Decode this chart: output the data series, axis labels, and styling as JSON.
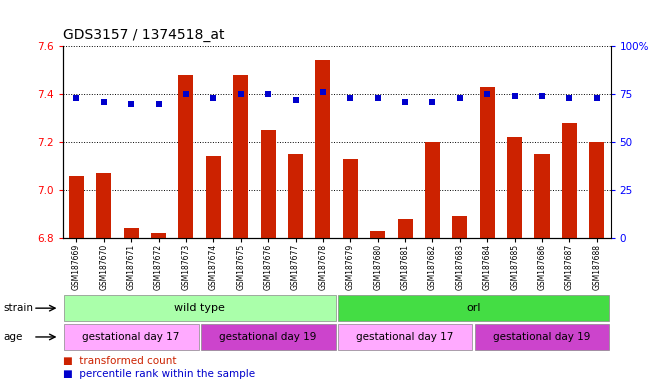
{
  "title": "GDS3157 / 1374518_at",
  "samples": [
    "GSM187669",
    "GSM187670",
    "GSM187671",
    "GSM187672",
    "GSM187673",
    "GSM187674",
    "GSM187675",
    "GSM187676",
    "GSM187677",
    "GSM187678",
    "GSM187679",
    "GSM187680",
    "GSM187681",
    "GSM187682",
    "GSM187683",
    "GSM187684",
    "GSM187685",
    "GSM187686",
    "GSM187687",
    "GSM187688"
  ],
  "bar_values": [
    7.06,
    7.07,
    6.84,
    6.82,
    7.48,
    7.14,
    7.48,
    7.25,
    7.15,
    7.54,
    7.13,
    6.83,
    6.88,
    7.2,
    6.89,
    7.43,
    7.22,
    7.15,
    7.28,
    7.2
  ],
  "percentile_values": [
    73,
    71,
    70,
    70,
    75,
    73,
    75,
    75,
    72,
    76,
    73,
    73,
    71,
    71,
    73,
    75,
    74,
    74,
    73,
    73
  ],
  "bar_color": "#cc2200",
  "percentile_color": "#0000cc",
  "ylim_left": [
    6.8,
    7.6
  ],
  "ylim_right": [
    0,
    100
  ],
  "yticks_left": [
    6.8,
    7.0,
    7.2,
    7.4,
    7.6
  ],
  "yticks_right": [
    0,
    25,
    50,
    75,
    100
  ],
  "groups_strain": [
    {
      "label": "wild type",
      "start": 0,
      "end": 9,
      "color": "#aaffaa"
    },
    {
      "label": "orl",
      "start": 10,
      "end": 19,
      "color": "#44dd44"
    }
  ],
  "groups_age": [
    {
      "label": "gestational day 17",
      "start": 0,
      "end": 4,
      "color": "#ffaaff"
    },
    {
      "label": "gestational day 19",
      "start": 5,
      "end": 9,
      "color": "#cc44cc"
    },
    {
      "label": "gestational day 17",
      "start": 10,
      "end": 14,
      "color": "#ffaaff"
    },
    {
      "label": "gestational day 19",
      "start": 15,
      "end": 19,
      "color": "#cc44cc"
    }
  ],
  "background_color": "#ffffff"
}
